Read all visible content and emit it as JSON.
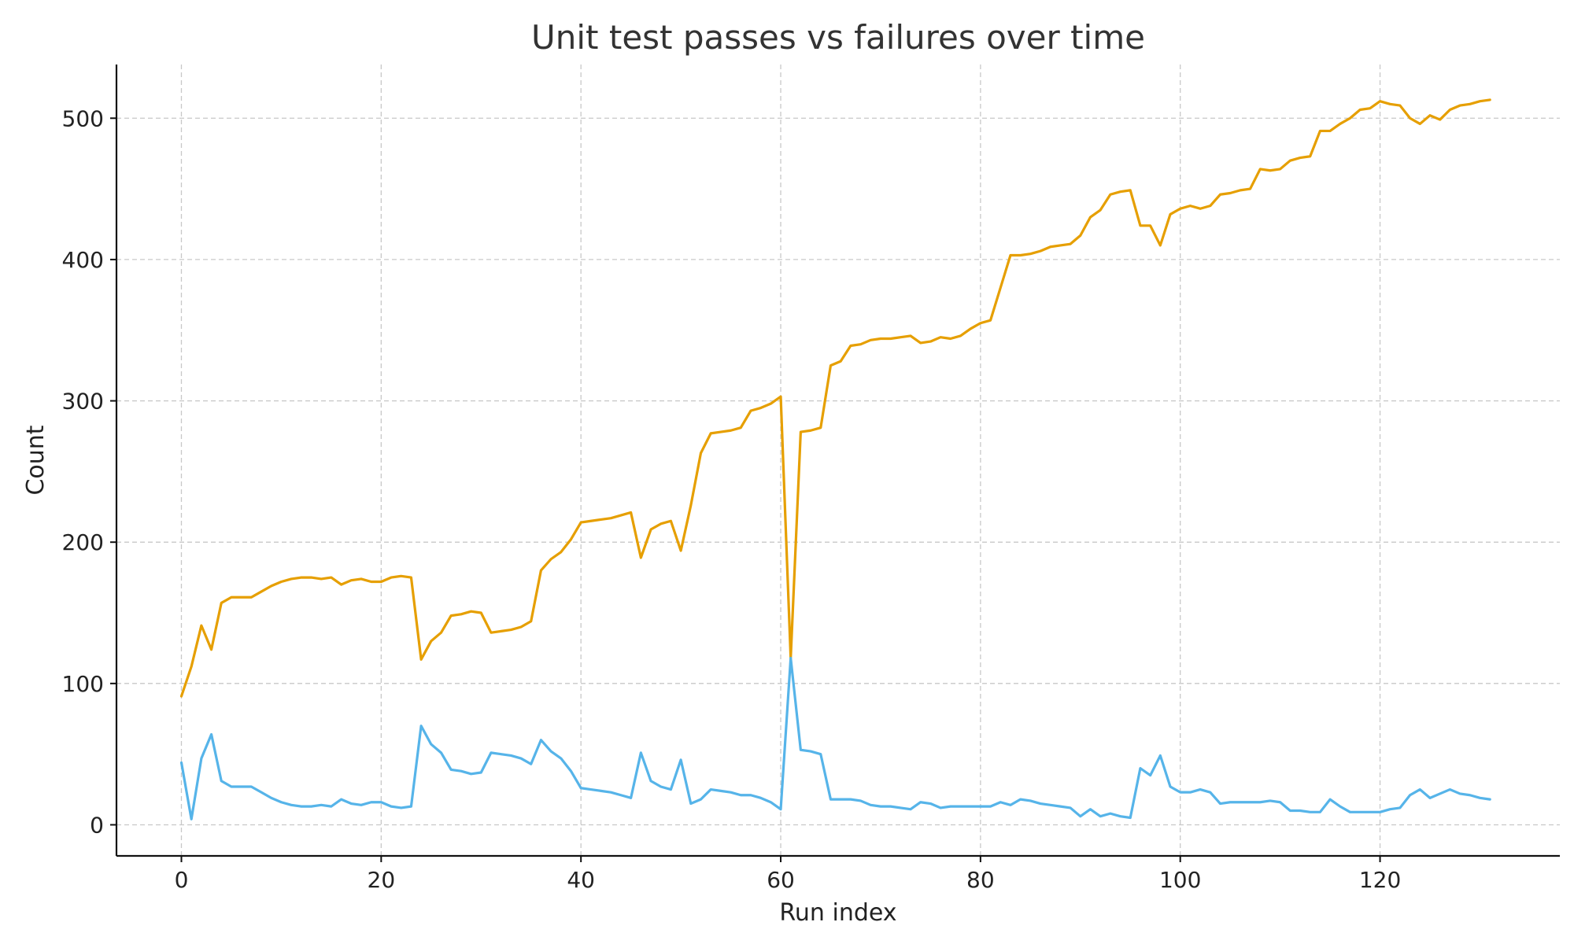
{
  "chart_data": {
    "type": "line",
    "title": "Unit test passes vs failures over time",
    "xlabel": "Run index",
    "ylabel": "Count",
    "xlim": [
      -6.5,
      138
    ],
    "ylim": [
      -22,
      538
    ],
    "xticks": [
      0,
      20,
      40,
      60,
      80,
      100,
      120
    ],
    "yticks": [
      0,
      100,
      200,
      300,
      400,
      500
    ],
    "grid": true,
    "colors": [
      "#E69F00",
      "#56B4E9"
    ],
    "x": [
      0,
      1,
      2,
      3,
      4,
      5,
      6,
      7,
      8,
      9,
      10,
      11,
      12,
      13,
      14,
      15,
      16,
      17,
      18,
      19,
      20,
      21,
      22,
      23,
      24,
      25,
      26,
      27,
      28,
      29,
      30,
      31,
      32,
      33,
      34,
      35,
      36,
      37,
      38,
      39,
      40,
      41,
      42,
      43,
      44,
      45,
      46,
      47,
      48,
      49,
      50,
      51,
      52,
      53,
      54,
      55,
      56,
      57,
      58,
      59,
      60,
      61,
      62,
      63,
      64,
      65,
      66,
      67,
      68,
      69,
      70,
      71,
      72,
      73,
      74,
      75,
      76,
      77,
      78,
      79,
      80,
      81,
      82,
      83,
      84,
      85,
      86,
      87,
      88,
      89,
      90,
      91,
      92,
      93,
      94,
      95,
      96,
      97,
      98,
      99,
      100,
      101,
      102,
      103,
      104,
      105,
      106,
      107,
      108,
      109,
      110,
      111,
      112,
      113,
      114,
      115,
      116,
      117,
      118,
      119,
      120,
      121,
      122,
      123,
      124,
      125,
      126,
      127,
      128,
      129,
      130,
      131
    ],
    "series": [
      {
        "values": [
          91,
          112,
          141,
          124,
          157,
          161,
          161,
          161,
          165,
          169,
          172,
          174,
          175,
          175,
          174,
          175,
          170,
          173,
          174,
          172,
          172,
          175,
          176,
          175,
          117,
          130,
          136,
          148,
          149,
          151,
          150,
          136,
          137,
          138,
          140,
          144,
          180,
          188,
          193,
          202,
          214,
          215,
          216,
          217,
          219,
          221,
          189,
          209,
          213,
          215,
          194,
          226,
          263,
          277,
          278,
          279,
          281,
          293,
          295,
          298,
          303,
          118,
          278,
          279,
          281,
          325,
          328,
          339,
          340,
          343,
          344,
          344,
          345,
          346,
          341,
          342,
          345,
          344,
          346,
          351,
          355,
          357,
          380,
          403,
          403,
          404,
          406,
          409,
          410,
          411,
          417,
          430,
          435,
          446,
          448,
          449,
          424,
          424,
          410,
          432,
          436,
          438,
          436,
          438,
          446,
          447,
          449,
          450,
          464,
          463,
          464,
          470,
          472,
          473,
          491,
          491,
          496,
          500,
          506,
          507,
          512,
          510,
          509,
          500,
          496,
          502,
          499,
          506,
          509,
          510,
          512,
          513
        ]
      },
      {
        "values": [
          44,
          4,
          47,
          64,
          31,
          27,
          27,
          27,
          23,
          19,
          16,
          14,
          13,
          13,
          14,
          13,
          18,
          15,
          14,
          16,
          16,
          13,
          12,
          13,
          70,
          57,
          51,
          39,
          38,
          36,
          37,
          51,
          50,
          49,
          47,
          43,
          60,
          52,
          47,
          38,
          26,
          25,
          24,
          23,
          21,
          19,
          51,
          31,
          27,
          25,
          46,
          15,
          18,
          25,
          24,
          23,
          21,
          21,
          19,
          16,
          11,
          118,
          53,
          52,
          50,
          18,
          18,
          18,
          17,
          14,
          13,
          13,
          12,
          11,
          16,
          15,
          12,
          13,
          13,
          13,
          13,
          13,
          16,
          14,
          18,
          17,
          15,
          14,
          13,
          12,
          6,
          11,
          6,
          8,
          6,
          5,
          40,
          35,
          49,
          27,
          23,
          23,
          25,
          23,
          15,
          16,
          16,
          16,
          16,
          17,
          16,
          10,
          10,
          9,
          9,
          18,
          13,
          9,
          9,
          9,
          9,
          11,
          12,
          21,
          25,
          19,
          22,
          25,
          22,
          21,
          19,
          18
        ]
      }
    ]
  }
}
